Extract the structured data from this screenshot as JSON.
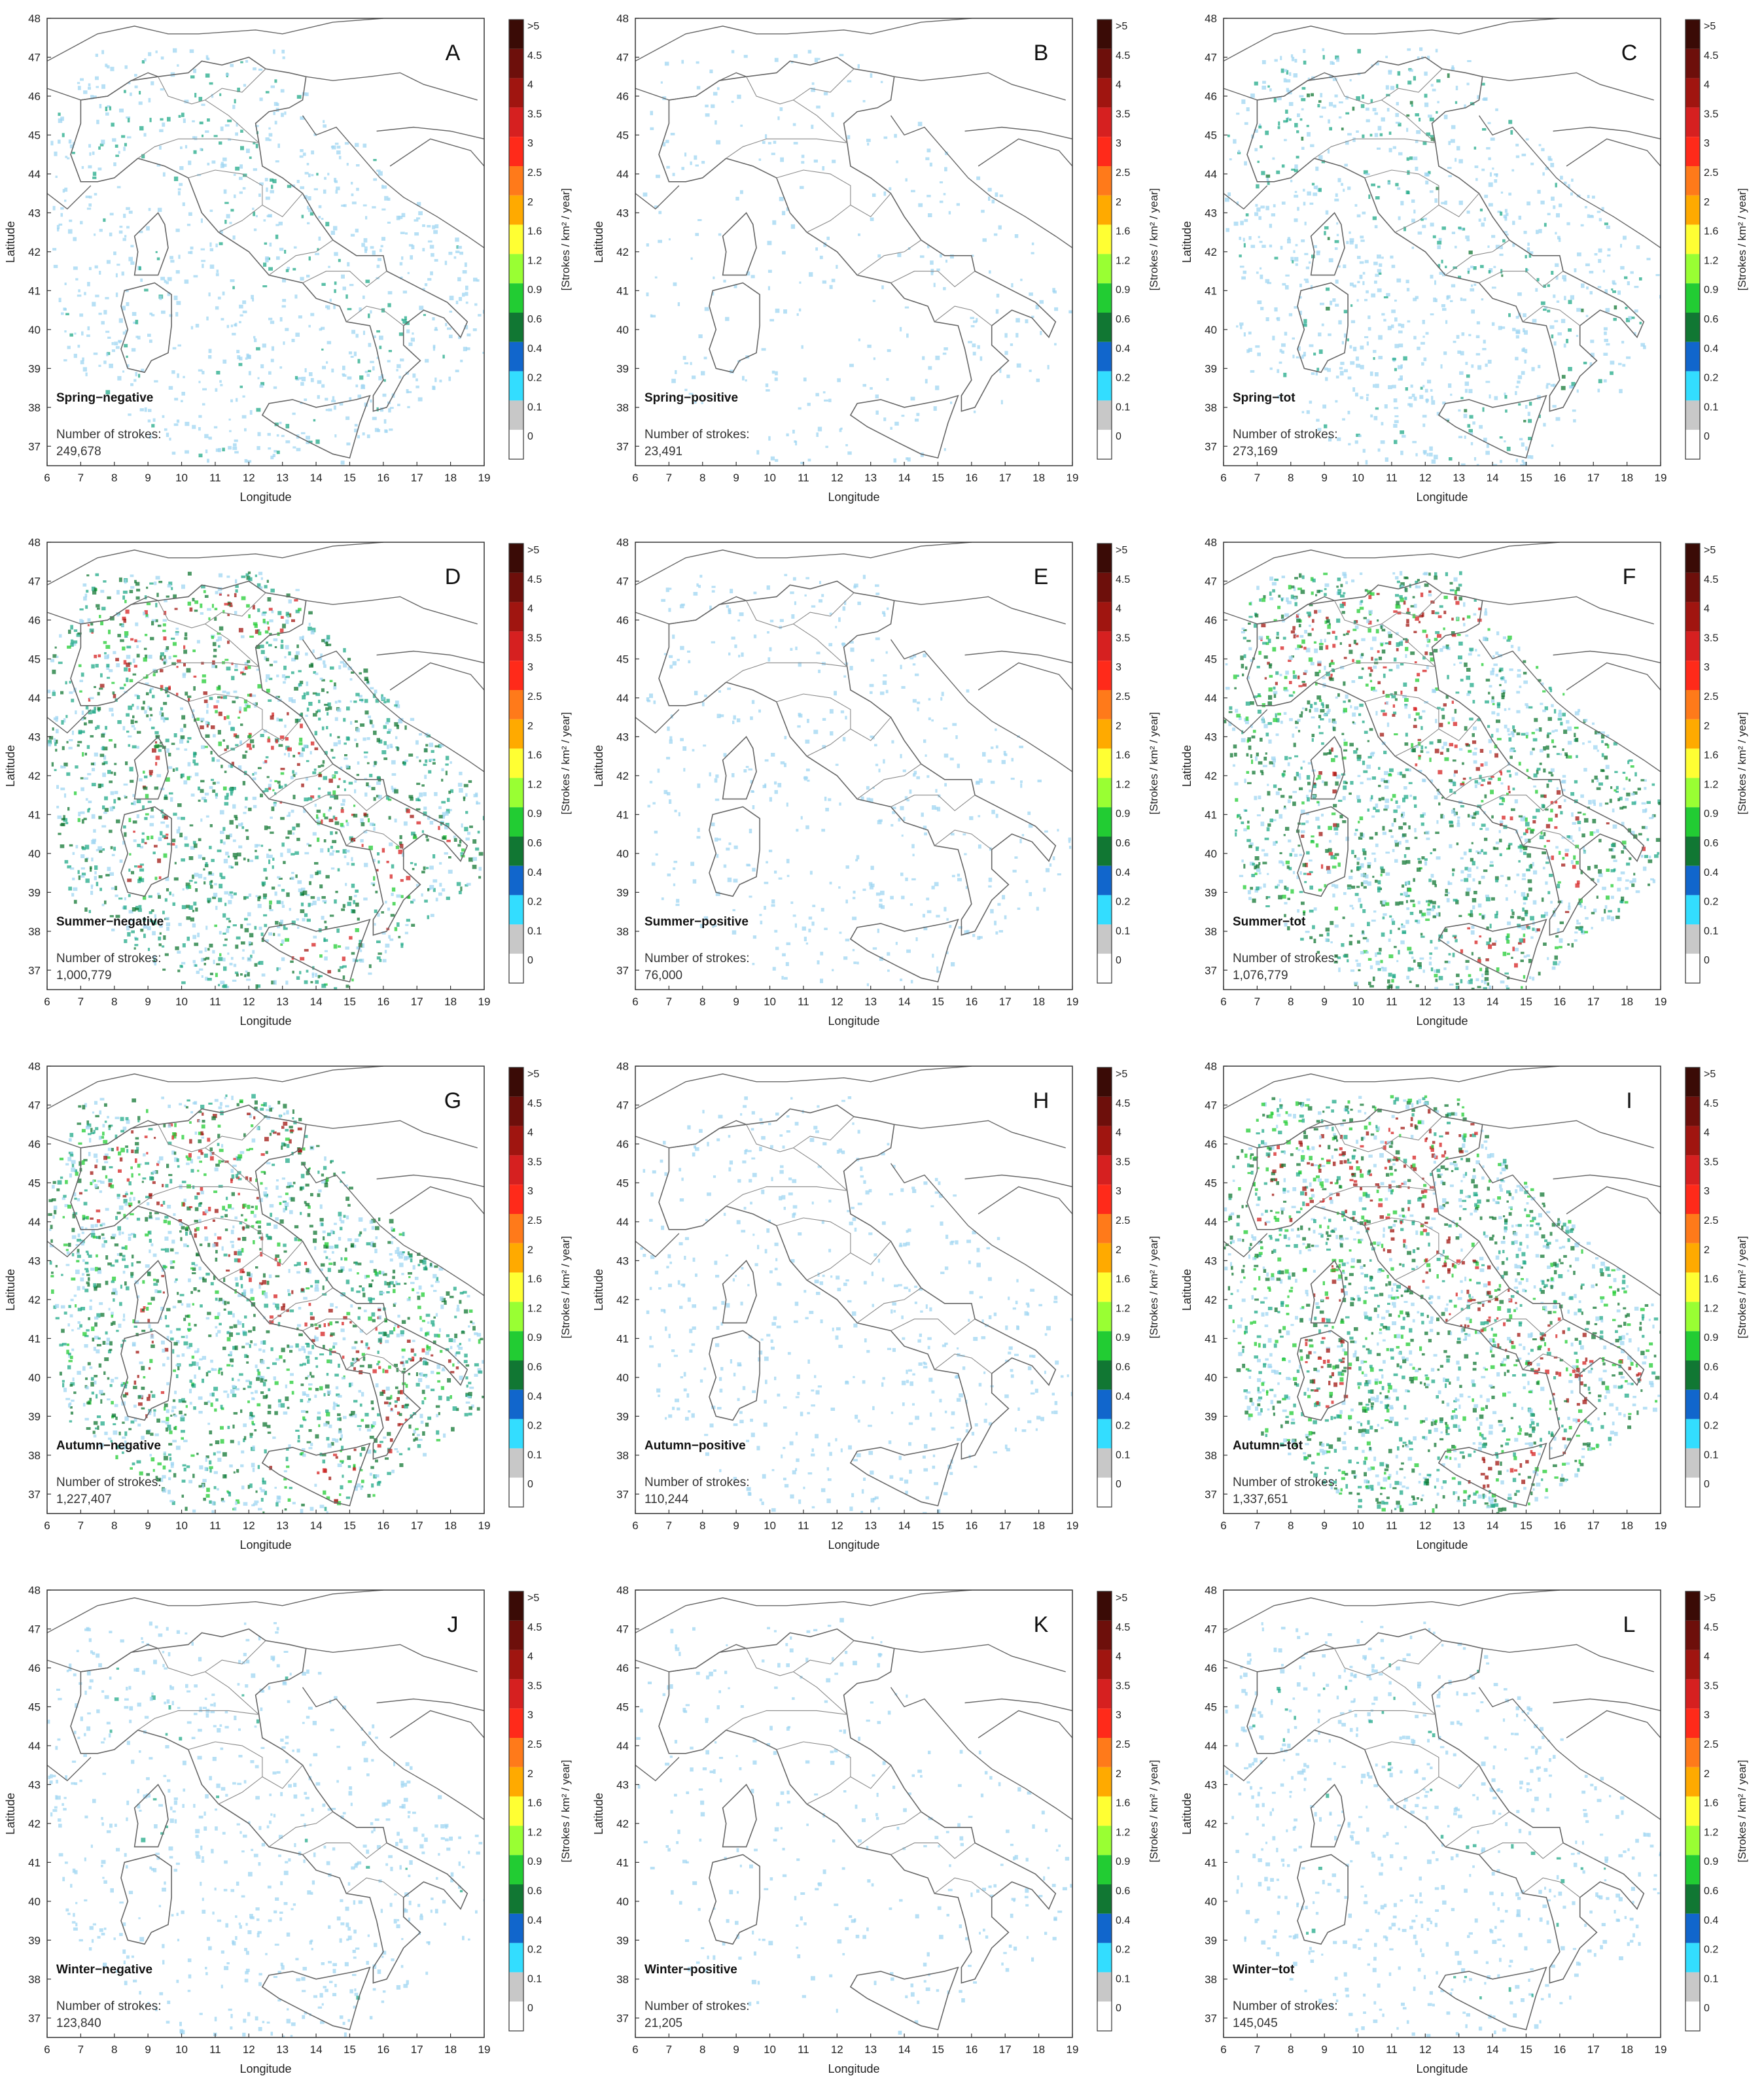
{
  "axes": {
    "xlabel": "Longitude",
    "ylabel": "Latitude",
    "xticks": [
      "6",
      "7",
      "8",
      "9",
      "10",
      "11",
      "12",
      "13",
      "14",
      "15",
      "16",
      "17",
      "18",
      "19"
    ],
    "yticks": [
      "37",
      "38",
      "39",
      "40",
      "41",
      "42",
      "43",
      "44",
      "45",
      "46",
      "47",
      "48"
    ]
  },
  "colorbar": {
    "unit_label": "[Strokes / km² / year]",
    "tick_labels": [
      ">5",
      "4.5",
      "4",
      "3.5",
      "3",
      "2.5",
      "2",
      "1.6",
      "1.2",
      "0.9",
      "0.6",
      "0.4",
      "0.2",
      "0.1",
      "0"
    ],
    "colors": [
      "#3a0b06",
      "#6d0f0b",
      "#a01510",
      "#d62020",
      "#ff2a1a",
      "#ff7a1a",
      "#ffaa00",
      "#ffff33",
      "#99ff33",
      "#22cc33",
      "#117733",
      "#1166cc",
      "#33ddff",
      "#c8c8c8",
      "#ffffff"
    ]
  },
  "strokes_label": "Number of strokes:",
  "panels": [
    {
      "letter": "A",
      "title": "Spring−negative",
      "count": "249,678",
      "intensity": 0.35
    },
    {
      "letter": "B",
      "title": "Spring−positive",
      "count": "23,491",
      "intensity": 0.05
    },
    {
      "letter": "C",
      "title": "Spring−tot",
      "count": "273,169",
      "intensity": 0.38
    },
    {
      "letter": "D",
      "title": "Summer−negative",
      "count": "1,000,779",
      "intensity": 0.85
    },
    {
      "letter": "E",
      "title": "Summer−positive",
      "count": "76,000",
      "intensity": 0.12
    },
    {
      "letter": "F",
      "title": "Summer−tot",
      "count": "1,076,779",
      "intensity": 0.9
    },
    {
      "letter": "G",
      "title": "Autumn−negative",
      "count": "1,227,407",
      "intensity": 0.95
    },
    {
      "letter": "H",
      "title": "Autumn−positive",
      "count": "110,244",
      "intensity": 0.15
    },
    {
      "letter": "I",
      "title": "Autumn−tot",
      "count": "1,337,651",
      "intensity": 1.0
    },
    {
      "letter": "J",
      "title": "Winter−negative",
      "count": "123,840",
      "intensity": 0.22
    },
    {
      "letter": "K",
      "title": "Winter−positive",
      "count": "21,205",
      "intensity": 0.04
    },
    {
      "letter": "L",
      "title": "Winter−tot",
      "count": "145,045",
      "intensity": 0.24
    }
  ]
}
